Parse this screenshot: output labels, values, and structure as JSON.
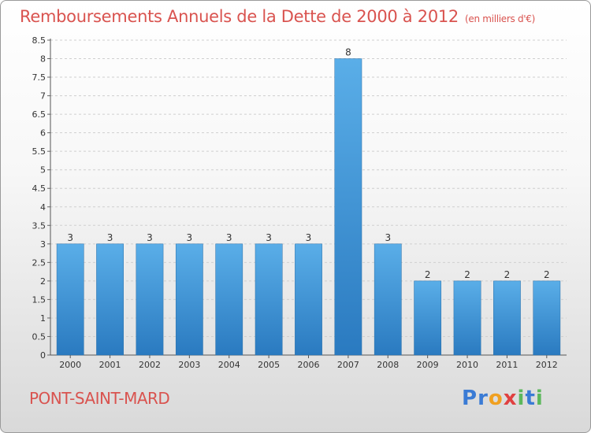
{
  "header": {
    "title": "Remboursements Annuels de la Dette de 2000 à 2012",
    "unit": "(en milliers d'€)"
  },
  "footer": {
    "commune": "PONT-SAINT-MARD",
    "logo_letters": [
      {
        "ch": "P",
        "color": "#3a7bd5"
      },
      {
        "ch": "r",
        "color": "#3a7bd5"
      },
      {
        "ch": "o",
        "color": "#f0a020"
      },
      {
        "ch": "x",
        "color": "#e04040"
      },
      {
        "ch": "i",
        "color": "#5cb85c"
      },
      {
        "ch": "t",
        "color": "#3a7bd5"
      },
      {
        "ch": "i",
        "color": "#5cb85c"
      }
    ]
  },
  "colors": {
    "bar_top": "#5aaee8",
    "bar_bottom": "#2a7ac0",
    "title": "#d9534f"
  },
  "chart_data": {
    "type": "bar",
    "categories": [
      "2000",
      "2001",
      "2002",
      "2003",
      "2004",
      "2005",
      "2006",
      "2007",
      "2008",
      "2009",
      "2010",
      "2011",
      "2012"
    ],
    "values": [
      3,
      3,
      3,
      3,
      3,
      3,
      3,
      8,
      3,
      2,
      2,
      2,
      2
    ],
    "data_labels": [
      "3",
      "3",
      "3",
      "3",
      "3",
      "3",
      "3",
      "8",
      "3",
      "2",
      "2",
      "2",
      "2"
    ],
    "yticks": [
      "0",
      "0.5",
      "1",
      "1.5",
      "2",
      "2.5",
      "3",
      "3.5",
      "4",
      "4.5",
      "5",
      "5.5",
      "6",
      "6.5",
      "7",
      "7.5",
      "8",
      "8.5"
    ],
    "ylim": [
      0,
      8.5
    ],
    "grid": true
  }
}
